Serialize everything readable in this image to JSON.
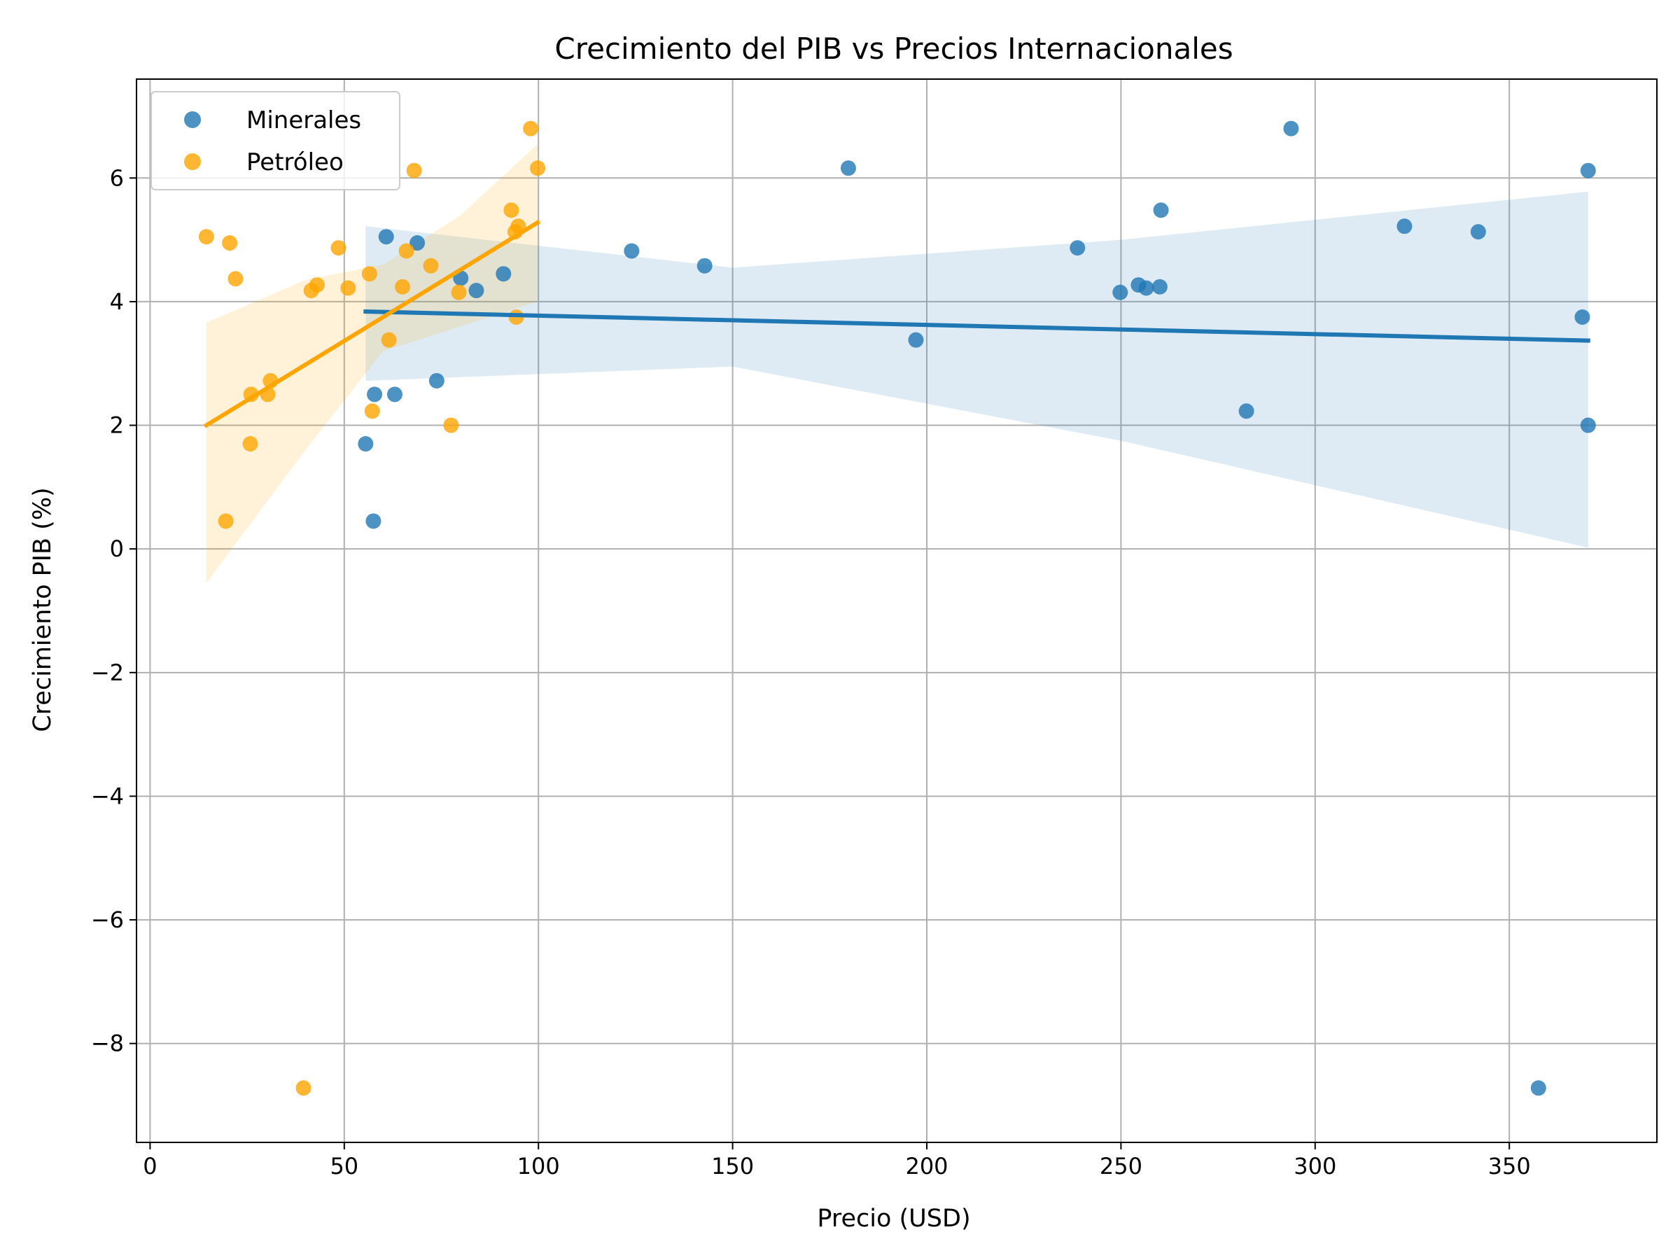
{
  "chart_data": {
    "type": "scatter",
    "title": "Crecimiento del PIB vs Precios Internacionales",
    "xlabel": "Precio (USD)",
    "ylabel": "Crecimiento PIB (%)",
    "xlim": [
      -3.5,
      388
    ],
    "ylim": [
      -9.6,
      7.6
    ],
    "xticks": [
      0,
      50,
      100,
      150,
      200,
      250,
      300,
      350
    ],
    "yticks": [
      -8,
      -6,
      -4,
      -2,
      0,
      2,
      4,
      6
    ],
    "xtick_labels": [
      "0",
      "50",
      "100",
      "150",
      "200",
      "250",
      "300",
      "350"
    ],
    "ytick_labels": [
      "−8",
      "−6",
      "−4",
      "−2",
      "0",
      "2",
      "4",
      "6"
    ],
    "grid": true,
    "legend_position": "top-left",
    "series": [
      {
        "name": "Minerales",
        "color": "#1f77b4",
        "points": [
          [
            55.5,
            1.7
          ],
          [
            57.5,
            0.45
          ],
          [
            57.8,
            2.5
          ],
          [
            60.8,
            5.05
          ],
          [
            63.0,
            2.5
          ],
          [
            68.8,
            4.95
          ],
          [
            73.8,
            2.72
          ],
          [
            80.0,
            4.38
          ],
          [
            84.0,
            4.18
          ],
          [
            91.0,
            4.45
          ],
          [
            124.0,
            4.82
          ],
          [
            142.8,
            4.58
          ],
          [
            179.8,
            6.16
          ],
          [
            197.2,
            3.38
          ],
          [
            238.8,
            4.87
          ],
          [
            249.8,
            4.15
          ],
          [
            254.5,
            4.27
          ],
          [
            256.5,
            4.22
          ],
          [
            260.0,
            4.24
          ],
          [
            260.3,
            5.48
          ],
          [
            282.3,
            2.23
          ],
          [
            293.8,
            6.8
          ],
          [
            323.0,
            5.22
          ],
          [
            342.0,
            5.13
          ],
          [
            357.5,
            -8.72
          ],
          [
            368.8,
            3.75
          ],
          [
            370.3,
            6.12
          ],
          [
            370.3,
            2.0
          ]
        ],
        "trend": [
          [
            55.5,
            3.84
          ],
          [
            370.3,
            3.37
          ]
        ],
        "ci_upper": [
          [
            55.5,
            5.22
          ],
          [
            150,
            4.55
          ],
          [
            250,
            5.0
          ],
          [
            370.3,
            5.78
          ]
        ],
        "ci_lower": [
          [
            55.5,
            2.72
          ],
          [
            150,
            2.95
          ],
          [
            250,
            1.75
          ],
          [
            370.3,
            0.02
          ]
        ]
      },
      {
        "name": "Petróleo",
        "color": "#ffa500",
        "points": [
          [
            14.5,
            5.05
          ],
          [
            19.5,
            0.45
          ],
          [
            20.5,
            4.95
          ],
          [
            22.0,
            4.37
          ],
          [
            25.8,
            1.7
          ],
          [
            26.0,
            2.5
          ],
          [
            30.3,
            2.5
          ],
          [
            31.0,
            2.72
          ],
          [
            39.5,
            -8.72
          ],
          [
            41.5,
            4.18
          ],
          [
            43.0,
            4.27
          ],
          [
            48.5,
            4.87
          ],
          [
            51.0,
            4.22
          ],
          [
            56.5,
            4.45
          ],
          [
            57.2,
            2.23
          ],
          [
            61.5,
            3.38
          ],
          [
            65.0,
            4.24
          ],
          [
            66.0,
            4.82
          ],
          [
            68.0,
            6.12
          ],
          [
            72.3,
            4.58
          ],
          [
            77.5,
            2.0
          ],
          [
            79.5,
            4.15
          ],
          [
            93.0,
            5.48
          ],
          [
            94.0,
            5.13
          ],
          [
            94.3,
            3.75
          ],
          [
            94.8,
            5.22
          ],
          [
            98.0,
            6.8
          ],
          [
            99.8,
            6.16
          ]
        ],
        "trend": [
          [
            14.5,
            2.0
          ],
          [
            99.8,
            5.28
          ]
        ],
        "ci_upper": [
          [
            14.5,
            3.66
          ],
          [
            40,
            4.35
          ],
          [
            60,
            4.6
          ],
          [
            80,
            5.4
          ],
          [
            99.8,
            6.55
          ]
        ],
        "ci_lower": [
          [
            14.5,
            -0.55
          ],
          [
            40,
            1.6
          ],
          [
            60,
            3.2
          ],
          [
            80,
            3.6
          ],
          [
            99.8,
            4.0
          ]
        ]
      }
    ]
  }
}
